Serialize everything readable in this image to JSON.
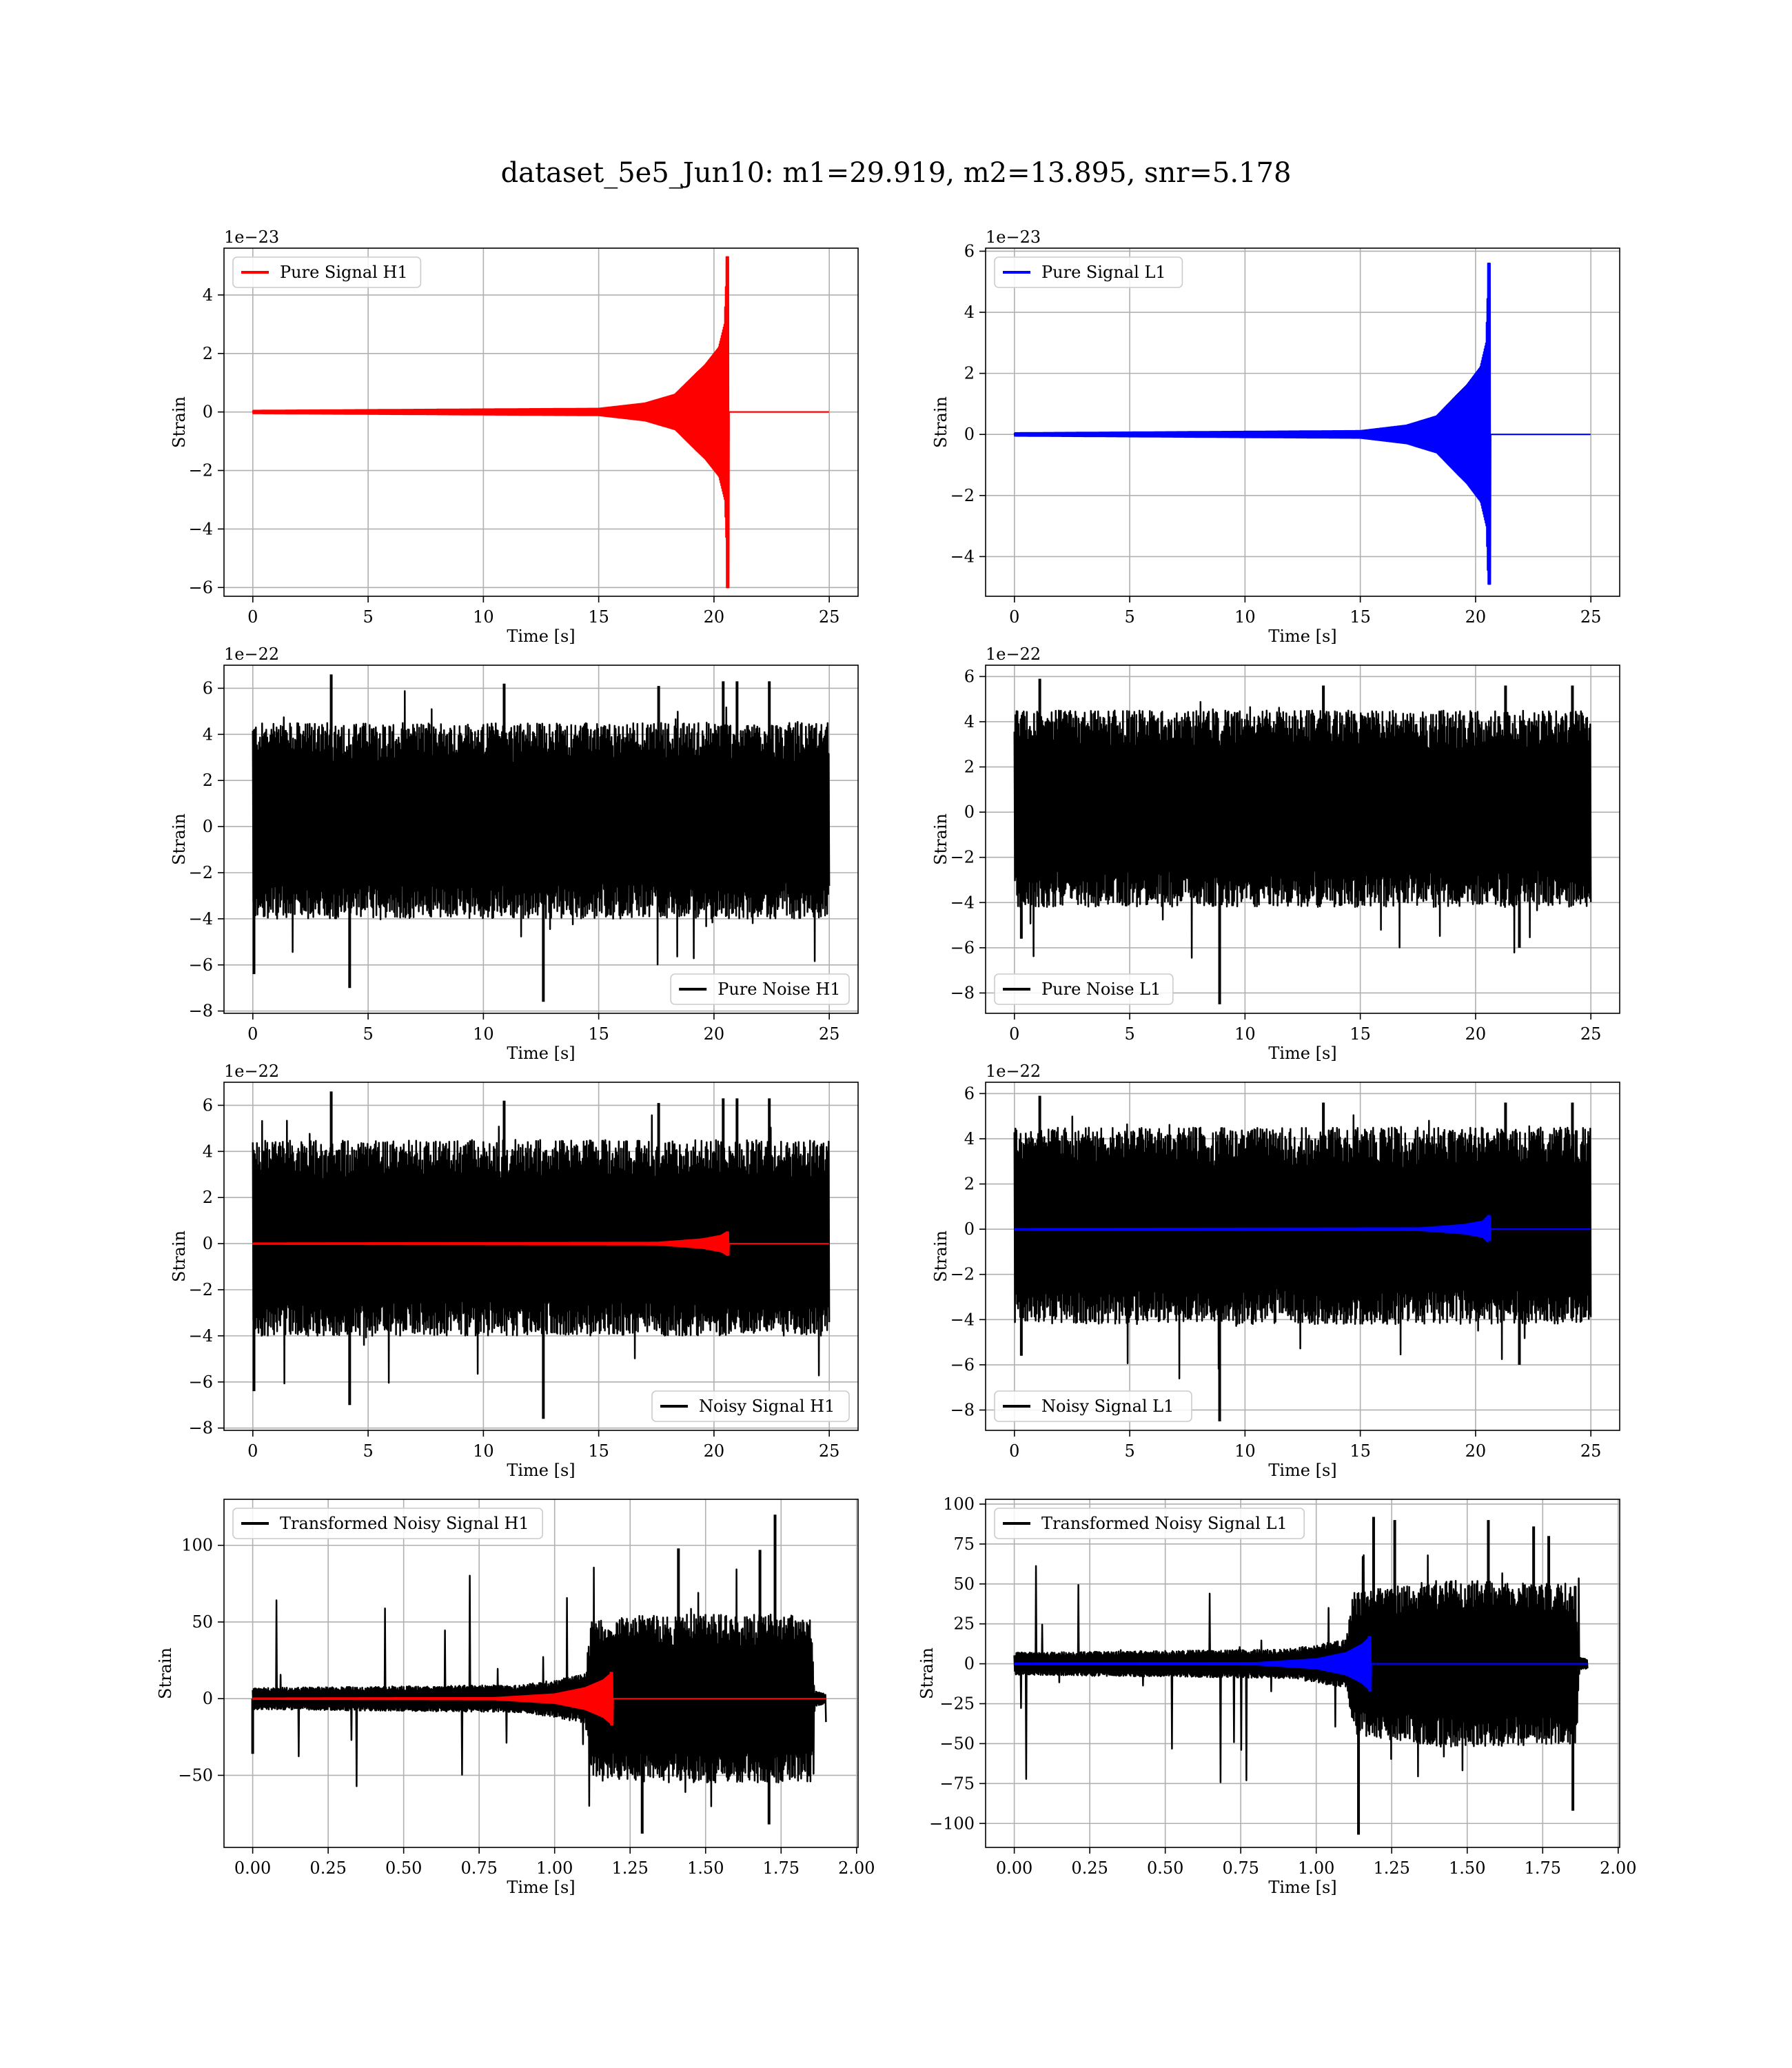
{
  "figure": {
    "title": "dataset_5e5_Jun10: m1=29.919, m2=13.895, snr=5.178"
  },
  "colors": {
    "h1_signal": "#ff0000",
    "l1_signal": "#0000ff",
    "noise": "#000000",
    "grid": "#b0b0b0"
  },
  "chart_data": [
    {
      "id": "pure-signal-h1",
      "type": "line",
      "xlabel": "Time [s]",
      "ylabel": "Strain",
      "offset_label": "1e−23",
      "xlim": [
        -1.25,
        26.25
      ],
      "ylim": [
        -6.3,
        5.6
      ],
      "xticks": [
        0,
        5,
        10,
        15,
        20,
        25
      ],
      "yticks": [
        -6,
        -4,
        -2,
        0,
        2,
        4
      ],
      "legend": "top-left",
      "series": [
        {
          "name": "Pure Signal H1",
          "color": "#ff0000",
          "kind": "chirp",
          "t_start": 0,
          "t_merge": 20.6,
          "t_end": 25,
          "envelope": [
            [
              0,
              0.05
            ],
            [
              15,
              0.12
            ],
            [
              17,
              0.3
            ],
            [
              18.3,
              0.6
            ],
            [
              19.2,
              1.3
            ],
            [
              19.6,
              1.6
            ],
            [
              20.2,
              2.2
            ],
            [
              20.45,
              3.0
            ],
            [
              20.55,
              5.3
            ]
          ],
          "merger_min": -6.0,
          "merger_max": 5.3
        }
      ]
    },
    {
      "id": "pure-signal-l1",
      "type": "line",
      "xlabel": "Time [s]",
      "ylabel": "Strain",
      "offset_label": "1e−23",
      "xlim": [
        -1.25,
        26.25
      ],
      "ylim": [
        -5.3,
        6.1
      ],
      "xticks": [
        0,
        5,
        10,
        15,
        20,
        25
      ],
      "yticks": [
        -4,
        -2,
        0,
        2,
        4,
        6
      ],
      "legend": "top-left",
      "series": [
        {
          "name": "Pure Signal L1",
          "color": "#0000ff",
          "kind": "chirp",
          "t_start": 0,
          "t_merge": 20.6,
          "t_end": 25,
          "envelope": [
            [
              0,
              0.05
            ],
            [
              15,
              0.12
            ],
            [
              17,
              0.3
            ],
            [
              18.3,
              0.6
            ],
            [
              19.2,
              1.3
            ],
            [
              19.6,
              1.6
            ],
            [
              20.2,
              2.2
            ],
            [
              20.45,
              3.0
            ],
            [
              20.55,
              5.6
            ]
          ],
          "merger_min": -4.9,
          "merger_max": 5.6
        }
      ]
    },
    {
      "id": "pure-noise-h1",
      "type": "line",
      "xlabel": "Time [s]",
      "ylabel": "Strain",
      "offset_label": "1e−22",
      "xlim": [
        -1.25,
        26.25
      ],
      "ylim": [
        -8.1,
        7.0
      ],
      "xticks": [
        0,
        5,
        10,
        15,
        20,
        25
      ],
      "yticks": [
        -8,
        -6,
        -4,
        -2,
        0,
        2,
        4,
        6
      ],
      "legend": "bottom-right",
      "series": [
        {
          "name": "Pure Noise H1",
          "color": "#000000",
          "kind": "noise",
          "t_start": 0,
          "t_end": 25,
          "band": [
            -4.0,
            4.5
          ],
          "extreme_min": -7.6,
          "extreme_max": 6.6,
          "spikes": [
            [
              0.05,
              -6.4
            ],
            [
              4.2,
              -7.0
            ],
            [
              3.4,
              6.6
            ],
            [
              12.6,
              -7.6
            ],
            [
              10.9,
              6.2
            ],
            [
              17.6,
              6.1
            ],
            [
              20.4,
              6.3
            ],
            [
              21.0,
              6.3
            ],
            [
              22.4,
              6.3
            ]
          ]
        }
      ]
    },
    {
      "id": "pure-noise-l1",
      "type": "line",
      "xlabel": "Time [s]",
      "ylabel": "Strain",
      "offset_label": "1e−22",
      "xlim": [
        -1.25,
        26.25
      ],
      "ylim": [
        -8.9,
        6.5
      ],
      "xticks": [
        0,
        5,
        10,
        15,
        20,
        25
      ],
      "yticks": [
        -8,
        -6,
        -4,
        -2,
        0,
        2,
        4,
        6
      ],
      "legend": "bottom-left",
      "series": [
        {
          "name": "Pure Noise L1",
          "color": "#000000",
          "kind": "noise",
          "t_start": 0,
          "t_end": 25,
          "band": [
            -4.2,
            4.5
          ],
          "extreme_min": -8.5,
          "extreme_max": 5.9,
          "spikes": [
            [
              8.9,
              -8.5
            ],
            [
              1.1,
              5.9
            ],
            [
              0.3,
              -5.6
            ],
            [
              13.4,
              5.6
            ],
            [
              21.3,
              5.6
            ],
            [
              21.9,
              -6.0
            ],
            [
              24.2,
              5.6
            ]
          ]
        }
      ]
    },
    {
      "id": "noisy-signal-h1",
      "type": "line",
      "xlabel": "Time [s]",
      "ylabel": "Strain",
      "offset_label": "1e−22",
      "xlim": [
        -1.25,
        26.25
      ],
      "ylim": [
        -8.1,
        7.0
      ],
      "xticks": [
        0,
        5,
        10,
        15,
        20,
        25
      ],
      "yticks": [
        -8,
        -6,
        -4,
        -2,
        0,
        2,
        4,
        6
      ],
      "legend": "bottom-right",
      "series": [
        {
          "name": "Noisy Signal H1",
          "color": "#000000",
          "kind": "noise",
          "t_start": 0,
          "t_end": 25,
          "band": [
            -4.0,
            4.5
          ],
          "extreme_min": -7.6,
          "extreme_max": 6.6,
          "spikes": [
            [
              0.05,
              -6.4
            ],
            [
              4.2,
              -7.0
            ],
            [
              3.4,
              6.6
            ],
            [
              12.6,
              -7.6
            ],
            [
              10.9,
              6.2
            ],
            [
              17.6,
              6.1
            ],
            [
              20.4,
              6.3
            ],
            [
              21.0,
              6.3
            ],
            [
              22.4,
              6.3
            ]
          ]
        },
        {
          "name": "",
          "color": "#ff0000",
          "kind": "chirp",
          "t_start": 0,
          "t_merge": 20.6,
          "t_end": 25,
          "envelope": [
            [
              0,
              0.02
            ],
            [
              17.5,
              0.05
            ],
            [
              18.5,
              0.12
            ],
            [
              19.5,
              0.2
            ],
            [
              20.3,
              0.35
            ],
            [
              20.55,
              0.5
            ]
          ],
          "merger_min": -0.5,
          "merger_max": 0.5
        }
      ]
    },
    {
      "id": "noisy-signal-l1",
      "type": "line",
      "xlabel": "Time [s]",
      "ylabel": "Strain",
      "offset_label": "1e−22",
      "xlim": [
        -1.25,
        26.25
      ],
      "ylim": [
        -8.9,
        6.5
      ],
      "xticks": [
        0,
        5,
        10,
        15,
        20,
        25
      ],
      "yticks": [
        -8,
        -6,
        -4,
        -2,
        0,
        2,
        4,
        6
      ],
      "legend": "bottom-left",
      "series": [
        {
          "name": "Noisy Signal L1",
          "color": "#000000",
          "kind": "noise",
          "t_start": 0,
          "t_end": 25,
          "band": [
            -4.2,
            4.5
          ],
          "extreme_min": -8.5,
          "extreme_max": 5.9,
          "spikes": [
            [
              8.9,
              -8.5
            ],
            [
              1.1,
              5.9
            ],
            [
              0.3,
              -5.6
            ],
            [
              13.4,
              5.6
            ],
            [
              21.3,
              5.6
            ],
            [
              21.9,
              -6.0
            ],
            [
              24.2,
              5.6
            ]
          ]
        },
        {
          "name": "",
          "color": "#0000ff",
          "kind": "chirp",
          "t_start": 0,
          "t_merge": 20.6,
          "t_end": 25,
          "envelope": [
            [
              0,
              0.02
            ],
            [
              17.5,
              0.05
            ],
            [
              18.5,
              0.12
            ],
            [
              19.5,
              0.2
            ],
            [
              20.3,
              0.35
            ],
            [
              20.55,
              0.6
            ]
          ],
          "merger_min": -0.5,
          "merger_max": 0.6
        }
      ]
    },
    {
      "id": "transformed-noisy-signal-h1",
      "type": "line",
      "xlabel": "Time [s]",
      "ylabel": "Strain",
      "offset_label": "",
      "xlim": [
        -0.095,
        2.005
      ],
      "ylim": [
        -97,
        130
      ],
      "xticks": [
        0.0,
        0.25,
        0.5,
        0.75,
        1.0,
        1.25,
        1.5,
        1.75,
        2.0
      ],
      "xticklabels": [
        "0.00",
        "0.25",
        "0.50",
        "0.75",
        "1.00",
        "1.25",
        "1.50",
        "1.75",
        "2.00"
      ],
      "yticks": [
        -50,
        0,
        50,
        100
      ],
      "legend": "top-left",
      "series": [
        {
          "name": "Transformed Noisy Signal H1",
          "color": "#000000",
          "kind": "noise",
          "t_start": 0,
          "t_end": 1.9,
          "band_profile": [
            [
              0,
              7
            ],
            [
              0.9,
              9
            ],
            [
              1.1,
              16
            ],
            [
              1.12,
              50
            ],
            [
              1.3,
              55
            ],
            [
              1.6,
              55
            ],
            [
              1.85,
              55
            ],
            [
              1.86,
              5
            ],
            [
              1.9,
              3
            ]
          ],
          "extreme_min": -88,
          "extreme_max": 120,
          "spikes": [
            [
              0.0,
              -36
            ],
            [
              1.73,
              120
            ],
            [
              1.29,
              -88
            ],
            [
              1.71,
              -82
            ],
            [
              1.41,
              98
            ],
            [
              1.68,
              97
            ]
          ]
        },
        {
          "name": "",
          "color": "#ff0000",
          "kind": "chirp",
          "t_start": 0,
          "t_merge": 1.19,
          "t_end": 1.9,
          "envelope": [
            [
              0,
              0.3
            ],
            [
              0.8,
              0.6
            ],
            [
              1.0,
              3
            ],
            [
              1.1,
              7
            ],
            [
              1.16,
              12
            ],
            [
              1.19,
              17
            ]
          ],
          "merger_min": -17,
          "merger_max": 17
        }
      ]
    },
    {
      "id": "transformed-noisy-signal-l1",
      "type": "line",
      "xlabel": "Time [s]",
      "ylabel": "Strain",
      "offset_label": "",
      "xlim": [
        -0.095,
        2.005
      ],
      "ylim": [
        -115,
        103
      ],
      "xticks": [
        0.0,
        0.25,
        0.5,
        0.75,
        1.0,
        1.25,
        1.5,
        1.75,
        2.0
      ],
      "xticklabels": [
        "0.00",
        "0.25",
        "0.50",
        "0.75",
        "1.00",
        "1.25",
        "1.50",
        "1.75",
        "2.00"
      ],
      "yticks": [
        -100,
        -75,
        -50,
        -25,
        0,
        25,
        50,
        75,
        100
      ],
      "legend": "top-left",
      "series": [
        {
          "name": "Transformed Noisy Signal L1",
          "color": "#000000",
          "kind": "noise",
          "t_start": 0,
          "t_end": 1.9,
          "band_profile": [
            [
              0,
              7
            ],
            [
              0.9,
              9
            ],
            [
              1.1,
              15
            ],
            [
              1.12,
              45
            ],
            [
              1.4,
              52
            ],
            [
              1.6,
              52
            ],
            [
              1.86,
              50
            ],
            [
              1.87,
              4
            ],
            [
              1.9,
              3
            ]
          ],
          "extreme_min": -107,
          "extreme_max": 92,
          "spikes": [
            [
              1.14,
              -107
            ],
            [
              1.19,
              92
            ],
            [
              1.26,
              90
            ],
            [
              1.57,
              90
            ],
            [
              1.72,
              86
            ],
            [
              1.77,
              80
            ],
            [
              1.85,
              -92
            ]
          ]
        },
        {
          "name": "",
          "color": "#0000ff",
          "kind": "chirp",
          "t_start": 0,
          "t_merge": 1.18,
          "t_end": 1.9,
          "envelope": [
            [
              0,
              0.3
            ],
            [
              0.8,
              0.6
            ],
            [
              1.0,
              3
            ],
            [
              1.1,
              7
            ],
            [
              1.15,
              12
            ],
            [
              1.18,
              17
            ]
          ],
          "merger_min": -17,
          "merger_max": 17
        }
      ]
    }
  ]
}
